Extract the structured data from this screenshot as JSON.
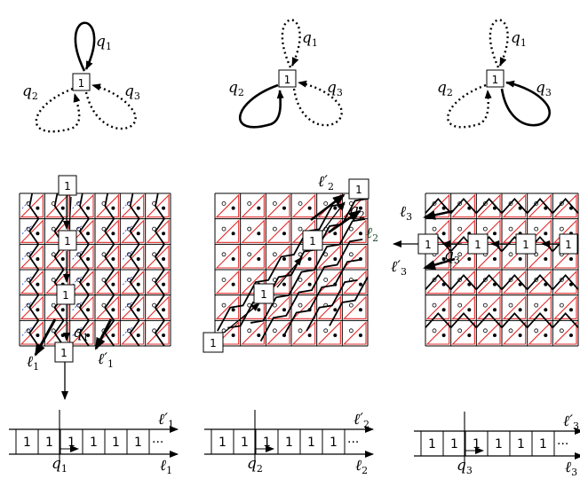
{
  "labels": {
    "q": [
      "q",
      "q",
      "q"
    ],
    "l": [
      "ℓ",
      "ℓ",
      "ℓ"
    ],
    "l_prime": [
      "ℓ′",
      "ℓ′",
      "ℓ′"
    ],
    "subs": [
      "1",
      "2",
      "3"
    ],
    "box_one": "1",
    "ellipsis": "···"
  },
  "quiver_diagrams": [
    {
      "name": "quiver-1",
      "solid_loop": "q1"
    },
    {
      "name": "quiver-2",
      "solid_loop": "q2"
    },
    {
      "name": "quiver-3",
      "solid_loop": "q3"
    }
  ],
  "strips": [
    {
      "cells": [
        "1",
        "1",
        "1",
        "1",
        "1",
        "1"
      ],
      "top_label": "ℓ′1",
      "bottom_label": "ℓ1",
      "arrow_label": "q1"
    },
    {
      "cells": [
        "1",
        "1",
        "1",
        "1",
        "1",
        "1"
      ],
      "top_label": "ℓ′2",
      "bottom_label": "ℓ2",
      "arrow_label": "q2"
    },
    {
      "cells": [
        "1",
        "1",
        "1",
        "1",
        "1",
        "1"
      ],
      "top_label": "ℓ′3",
      "bottom_label": "ℓ3",
      "arrow_label": "q3"
    }
  ],
  "colors": {
    "ink": "#000000",
    "red": "#e32b2b",
    "blue": "#3a4fc9",
    "dark_green": "#1f4a2f"
  }
}
